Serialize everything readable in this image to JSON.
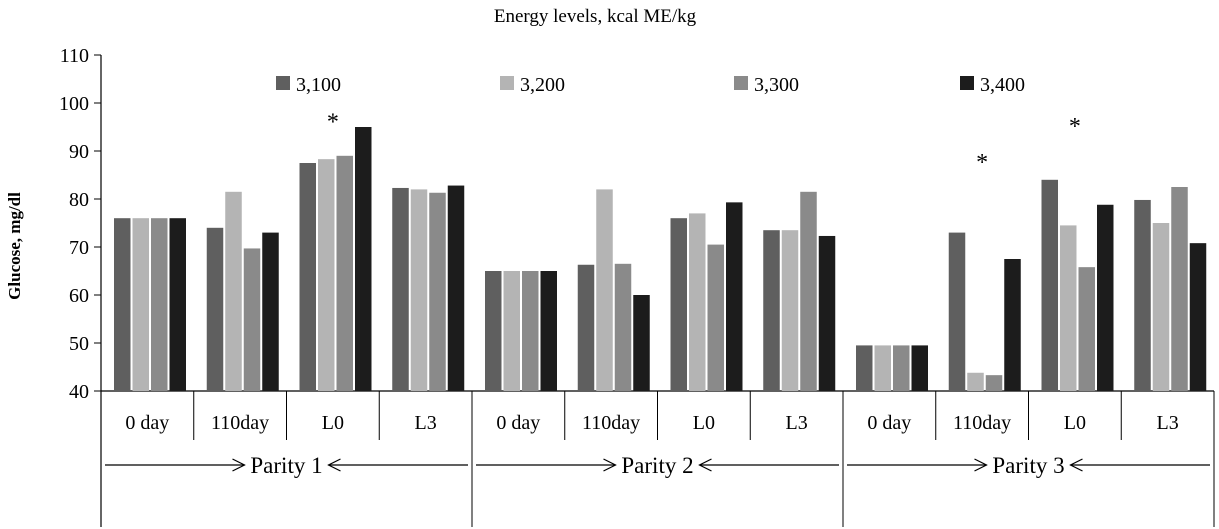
{
  "colors": {
    "3,100": "#5f5f5f",
    "3,200": "#b4b4b4",
    "3,300": "#8a8a8a",
    "3,400": "#1c1c1c",
    "axis": "#000000",
    "text": "#000000"
  },
  "chart_data": {
    "type": "bar",
    "title": "Energy levels, kcal ME/kg",
    "ylabel": "Glucose, mg/dl",
    "xlabel": "",
    "ylim": [
      40,
      110
    ],
    "y_ticks": [
      40,
      50,
      60,
      70,
      80,
      90,
      100,
      110
    ],
    "categories": [
      "0 day",
      "110day",
      "L0",
      "L3",
      "0 day",
      "110day",
      "L0",
      "L3",
      "0 day",
      "110day",
      "L0",
      "L3"
    ],
    "groups": [
      {
        "label": "Parity 1",
        "category_indices": [
          0,
          1,
          2,
          3
        ]
      },
      {
        "label": "Parity 2",
        "category_indices": [
          4,
          5,
          6,
          7
        ]
      },
      {
        "label": "Parity 3",
        "category_indices": [
          8,
          9,
          10,
          11
        ]
      }
    ],
    "series": [
      {
        "name": "3,100",
        "values": [
          76,
          74,
          87.5,
          82.3,
          65,
          66.3,
          76,
          73.5,
          49.5,
          73,
          84,
          79.8
        ]
      },
      {
        "name": "3,200",
        "values": [
          76,
          81.5,
          88.3,
          82,
          65,
          82,
          77,
          73.5,
          49.5,
          43.8,
          74.5,
          75
        ]
      },
      {
        "name": "3,300",
        "values": [
          76,
          69.7,
          89,
          81.3,
          65,
          66.5,
          70.5,
          81.5,
          49.5,
          43.3,
          65.8,
          82.5
        ]
      },
      {
        "name": "3,400",
        "values": [
          76,
          73,
          95,
          82.8,
          65,
          60,
          79.3,
          72.3,
          49.5,
          67.5,
          78.8,
          70.8
        ]
      }
    ],
    "annotations": [
      {
        "text": "*",
        "category_index": 2,
        "value": 97
      },
      {
        "text": "*",
        "category_index": 9,
        "value": 88.5
      },
      {
        "text": "*",
        "category_index": 10,
        "value": 96
      }
    ],
    "legend": {
      "position": "top",
      "entries": [
        "3,100",
        "3,200",
        "3,300",
        "3,400"
      ]
    }
  }
}
